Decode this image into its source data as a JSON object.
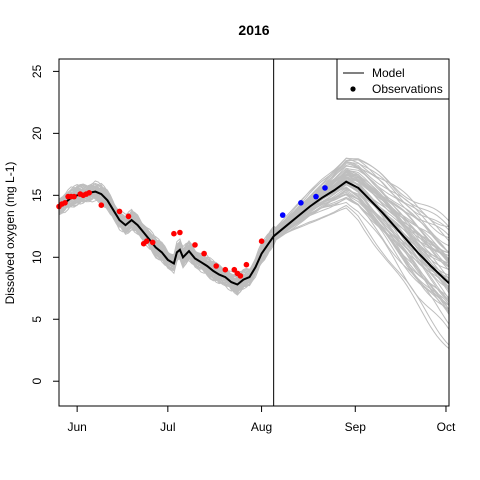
{
  "chart_data": {
    "type": "line",
    "title": "2016",
    "ylabel": "Dissolved oxygen (mg L-1)",
    "xlabel": "",
    "x_unit": "day of year",
    "xlim": [
      147,
      276
    ],
    "ylim": [
      -2,
      26
    ],
    "x_ticks": [
      {
        "label": "Jun",
        "x": 153
      },
      {
        "label": "Jul",
        "x": 183
      },
      {
        "label": "Aug",
        "x": 214
      },
      {
        "label": "Sep",
        "x": 245
      },
      {
        "label": "Oct",
        "x": 275
      }
    ],
    "y_ticks": [
      0,
      5,
      10,
      15,
      20,
      25
    ],
    "forecast_start_x": 218,
    "legend": {
      "position": "top-right",
      "entries": [
        {
          "label": "Model",
          "symbol": "line"
        },
        {
          "label": "Observations",
          "symbol": "point"
        }
      ]
    },
    "colors": {
      "model": "#000000",
      "ensemble": "#bebebe",
      "observations_calibration": "#ff0000",
      "observations_forecast": "#0000ff"
    },
    "model_line": {
      "x": [
        147,
        149,
        151,
        153,
        155,
        157,
        159,
        161,
        163,
        165,
        167,
        169,
        171,
        173,
        175,
        177,
        179,
        181,
        183,
        185,
        186,
        187,
        188,
        190,
        192,
        194,
        196,
        198,
        200,
        202,
        204,
        206,
        208,
        210,
        212,
        214,
        216,
        218,
        222,
        226,
        230,
        234,
        238,
        242,
        246,
        250,
        254,
        258,
        262,
        266,
        270,
        276
      ],
      "y": [
        14.1,
        14.4,
        14.8,
        15.0,
        15.1,
        15.2,
        15.3,
        15.1,
        14.6,
        13.8,
        13.0,
        12.6,
        13.0,
        12.6,
        12.0,
        11.4,
        10.8,
        10.4,
        9.8,
        9.5,
        10.4,
        10.6,
        10.0,
        10.5,
        9.9,
        9.6,
        9.3,
        8.9,
        8.6,
        8.4,
        8.0,
        7.8,
        8.2,
        8.4,
        9.2,
        10.3,
        11.0,
        11.7,
        12.5,
        13.3,
        14.1,
        14.8,
        15.4,
        16.1,
        15.6,
        14.6,
        13.6,
        12.5,
        11.4,
        10.3,
        9.3,
        7.9
      ]
    },
    "ensemble": {
      "n_members": 60,
      "calibration_spread": 0.9,
      "forecast_spread_max": 4.5
    },
    "observations": [
      {
        "x": 147,
        "y": 14.1,
        "phase": "calibration"
      },
      {
        "x": 148,
        "y": 14.3,
        "phase": "calibration"
      },
      {
        "x": 149,
        "y": 14.4,
        "phase": "calibration"
      },
      {
        "x": 150,
        "y": 14.9,
        "phase": "calibration"
      },
      {
        "x": 151,
        "y": 14.9,
        "phase": "calibration"
      },
      {
        "x": 152,
        "y": 14.9,
        "phase": "calibration"
      },
      {
        "x": 154,
        "y": 15.1,
        "phase": "calibration"
      },
      {
        "x": 155,
        "y": 15.0,
        "phase": "calibration"
      },
      {
        "x": 156,
        "y": 15.1,
        "phase": "calibration"
      },
      {
        "x": 157,
        "y": 15.2,
        "phase": "calibration"
      },
      {
        "x": 161,
        "y": 14.2,
        "phase": "calibration"
      },
      {
        "x": 167,
        "y": 13.7,
        "phase": "calibration"
      },
      {
        "x": 170,
        "y": 13.3,
        "phase": "calibration"
      },
      {
        "x": 175,
        "y": 11.1,
        "phase": "calibration"
      },
      {
        "x": 176,
        "y": 11.3,
        "phase": "calibration"
      },
      {
        "x": 178,
        "y": 11.2,
        "phase": "calibration"
      },
      {
        "x": 185,
        "y": 11.9,
        "phase": "calibration"
      },
      {
        "x": 187,
        "y": 12.0,
        "phase": "calibration"
      },
      {
        "x": 192,
        "y": 11.0,
        "phase": "calibration"
      },
      {
        "x": 195,
        "y": 10.3,
        "phase": "calibration"
      },
      {
        "x": 199,
        "y": 9.3,
        "phase": "calibration"
      },
      {
        "x": 202,
        "y": 9.0,
        "phase": "calibration"
      },
      {
        "x": 205,
        "y": 9.0,
        "phase": "calibration"
      },
      {
        "x": 206,
        "y": 8.7,
        "phase": "calibration"
      },
      {
        "x": 207,
        "y": 8.5,
        "phase": "calibration"
      },
      {
        "x": 209,
        "y": 9.4,
        "phase": "calibration"
      },
      {
        "x": 214,
        "y": 11.3,
        "phase": "calibration"
      },
      {
        "x": 221,
        "y": 13.4,
        "phase": "forecast"
      },
      {
        "x": 227,
        "y": 14.4,
        "phase": "forecast"
      },
      {
        "x": 232,
        "y": 14.9,
        "phase": "forecast"
      },
      {
        "x": 235,
        "y": 15.6,
        "phase": "forecast"
      }
    ]
  }
}
